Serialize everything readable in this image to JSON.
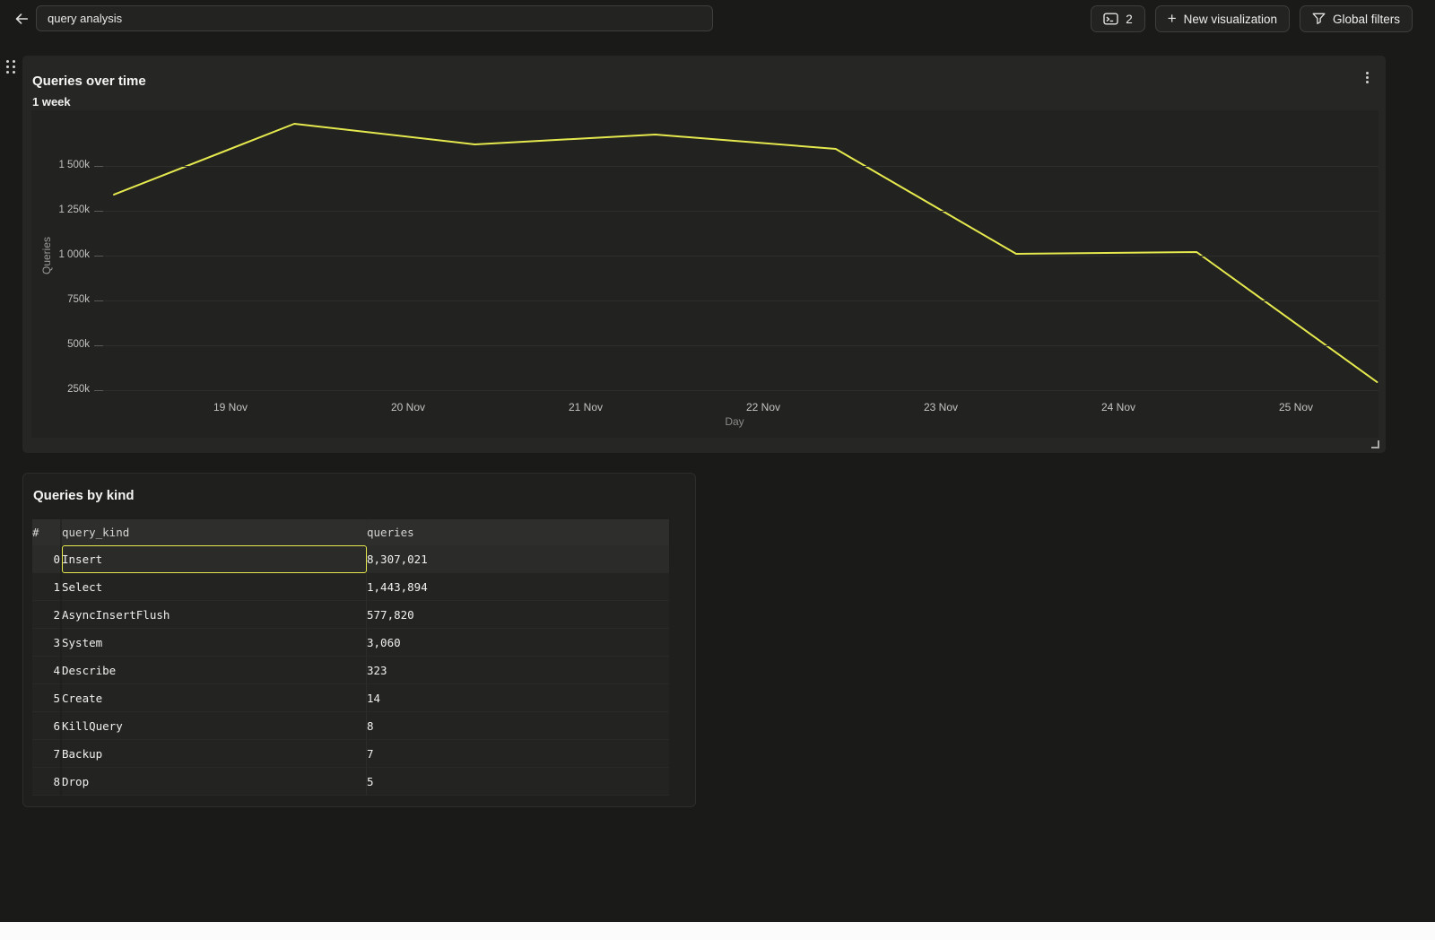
{
  "topbar": {
    "title_input": {
      "value": "query analysis"
    },
    "slides_button": {
      "count": "2"
    },
    "new_viz_button": {
      "plus": "+",
      "label": "New visualization"
    },
    "global_filters_button": {
      "label": "Global filters"
    }
  },
  "icons": {
    "back": "arrow-left",
    "slides": "terminal-window",
    "new_viz": "plus",
    "global_filters": "funnel",
    "panel_menu": "kebab-vertical",
    "drag": "grip-dots",
    "resize": "corner-resize-handle"
  },
  "chart_panel": {
    "title": "Queries over time",
    "subtitle": "1 week"
  },
  "chart_data": {
    "type": "line",
    "title": "Queries over time",
    "subtitle": "1 week",
    "xlabel": "Day",
    "ylabel": "Queries",
    "x_tick_labels": [
      "19 Nov",
      "20 Nov",
      "21 Nov",
      "22 Nov",
      "23 Nov",
      "24 Nov",
      "25 Nov"
    ],
    "y_ticks": [
      {
        "value": 1500000,
        "label": "1 500k"
      },
      {
        "value": 1250000,
        "label": "1 250k"
      },
      {
        "value": 1000000,
        "label": "1 000k"
      },
      {
        "value": 750000,
        "label": "750k"
      },
      {
        "value": 500000,
        "label": "500k"
      },
      {
        "value": 250000,
        "label": "250k"
      }
    ],
    "ylim": [
      0,
      1810000
    ],
    "grid": "horizontal",
    "legend": "none",
    "line_color": "#e5e94e",
    "series": [
      {
        "name": "Queries",
        "values": [
          1340000,
          1735000,
          1620000,
          1675000,
          1595000,
          1010000,
          1020000,
          295000
        ]
      }
    ]
  },
  "table_panel": {
    "title": "Queries by kind",
    "columns": [
      "#",
      "query_kind",
      "queries"
    ],
    "rows": [
      {
        "index": "0",
        "query_kind": "Insert",
        "queries": "8,307,021",
        "selected": true
      },
      {
        "index": "1",
        "query_kind": "Select",
        "queries": "1,443,894",
        "selected": false
      },
      {
        "index": "2",
        "query_kind": "AsyncInsertFlush",
        "queries": "577,820",
        "selected": false
      },
      {
        "index": "3",
        "query_kind": "System",
        "queries": "3,060",
        "selected": false
      },
      {
        "index": "4",
        "query_kind": "Describe",
        "queries": "323",
        "selected": false
      },
      {
        "index": "5",
        "query_kind": "Create",
        "queries": "14",
        "selected": false
      },
      {
        "index": "6",
        "query_kind": "KillQuery",
        "queries": "8",
        "selected": false
      },
      {
        "index": "7",
        "query_kind": "Backup",
        "queries": "7",
        "selected": false
      },
      {
        "index": "8",
        "query_kind": "Drop",
        "queries": "5",
        "selected": false
      }
    ]
  },
  "colors": {
    "page_bg": "#1a1a18",
    "panel_bg": "#262624",
    "plot_bg": "#222220",
    "accent_yellow": "#e5e94e",
    "grid_line": "#2e2e2c"
  }
}
